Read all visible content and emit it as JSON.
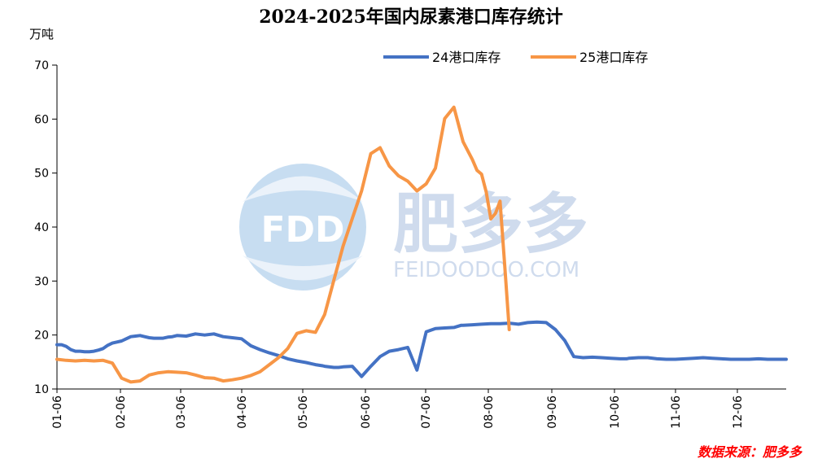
{
  "title": "2024-2025年国内尿素港口库存统计",
  "unit": "万吨",
  "source": "数据来源：肥多多",
  "watermark": {
    "logo_text": "FDD",
    "brand_cn": "肥多多",
    "brand_url": "FEIDOODOO.COM"
  },
  "colors": {
    "series_24": "#4472c4",
    "series_25": "#f79646",
    "source_text": "#ff0000"
  },
  "chart_data": {
    "type": "line",
    "title": "2024-2025年国内尿素港口库存统计",
    "ylabel": "万吨",
    "xlabel": "",
    "ylim": [
      10,
      70
    ],
    "yticks": [
      10,
      20,
      30,
      40,
      50,
      60,
      70
    ],
    "x_tick_labels": [
      "01-06",
      "02-06",
      "03-06",
      "04-06",
      "05-06",
      "06-06",
      "07-06",
      "08-06",
      "09-06",
      "10-06",
      "11-06",
      "12-06"
    ],
    "x_unit": "week index (0 = 01-06)",
    "grid": false,
    "legend_position": "top",
    "series": [
      {
        "name": "24港口库存",
        "color": "#4472c4",
        "x": [
          0,
          0.5,
          1,
          1.5,
          2,
          2.5,
          3,
          3.5,
          4,
          4.5,
          5,
          5.5,
          6,
          6.5,
          7,
          7.5,
          8,
          8.5,
          9,
          9.5,
          10,
          10.5,
          11,
          11.5,
          12,
          12.5,
          13,
          14,
          15,
          16,
          17,
          18,
          19,
          20,
          20.7,
          21,
          22,
          23,
          24,
          25,
          26,
          27,
          27.5,
          28,
          28.8,
          29,
          30,
          30.5,
          31,
          32,
          33,
          34,
          35,
          36,
          37,
          38,
          39,
          40,
          41,
          42,
          43,
          43.8,
          44,
          45,
          46,
          47,
          48,
          49,
          50,
          51,
          52,
          53,
          54,
          55,
          56,
          57,
          58,
          59,
          60,
          61,
          61.7,
          62,
          63,
          64,
          65,
          66,
          67,
          68,
          69,
          70,
          71,
          72,
          73,
          74,
          75,
          76,
          77,
          78,
          79
        ],
        "y": [
          18.2,
          18.2,
          17.9,
          17.3,
          17.0,
          17.0,
          16.9,
          16.9,
          17.0,
          17.2,
          17.5,
          18.1,
          18.5,
          18.7,
          18.9,
          19.3,
          19.7,
          19.8,
          19.9,
          19.7,
          19.5,
          19.4,
          19.4,
          19.4,
          19.6,
          19.7,
          19.9,
          19.8,
          20.2,
          20.0,
          20.2,
          19.7,
          19.5,
          19.3,
          18.4,
          18.0,
          17.3,
          16.7,
          16.2,
          15.6,
          15.2,
          14.9,
          14.7,
          14.5,
          14.3,
          14.2,
          14.0,
          14.0,
          14.1,
          14.2,
          12.3,
          14.2,
          16.0,
          17.0,
          17.3,
          17.7,
          13.5,
          20.6,
          21.2,
          21.3,
          21.4,
          21.8,
          21.8,
          21.9,
          22.0,
          22.1,
          22.1,
          22.2,
          22.0,
          22.3,
          22.4,
          22.3,
          21.0,
          19.0,
          16.0,
          15.8,
          15.9,
          15.8,
          15.7,
          15.6,
          15.6,
          15.7,
          15.8,
          15.8,
          15.6,
          15.5,
          15.5,
          15.6,
          15.7,
          15.8,
          15.7,
          15.6,
          15.5,
          15.5,
          15.5,
          15.6,
          15.5,
          15.5,
          15.5
        ]
      },
      {
        "name": "25港口库存",
        "color": "#f79646",
        "x": [
          0,
          1,
          2,
          3,
          4,
          5,
          6,
          7,
          8,
          9,
          10,
          11,
          12,
          13,
          14,
          15,
          16,
          17,
          18,
          19,
          20,
          21,
          22,
          23,
          24,
          25,
          26,
          27,
          28,
          29,
          30,
          31,
          32,
          33,
          34,
          35,
          36,
          37,
          38,
          39,
          40,
          41,
          42,
          43,
          44,
          45,
          45.5,
          46,
          46.5,
          47
        ],
        "y": [
          15.5,
          15.3,
          15.2,
          15.3,
          15.2,
          15.3,
          14.8,
          12.0,
          11.3,
          11.5,
          12.6,
          13.0,
          13.2,
          13.1,
          13.0,
          12.6,
          12.1,
          12.0,
          11.5,
          11.7,
          12.0,
          12.5,
          13.2,
          14.5,
          15.8,
          17.5,
          20.3,
          20.8,
          20.5,
          23.8,
          30.2,
          36.5,
          41.6,
          46.7,
          53.6,
          54.7,
          51.3,
          49.5,
          48.5,
          46.7,
          48.0,
          50.9,
          60.1,
          62.2,
          55.8,
          52.5,
          50.5,
          49.8,
          46.5,
          41.5
        ]
      }
    ],
    "series_25_tail": {
      "x": [
        47,
        47.5,
        48,
        48.5,
        49
      ],
      "y": [
        41.5,
        42.5,
        44.8,
        33.0,
        21.0
      ]
    }
  }
}
